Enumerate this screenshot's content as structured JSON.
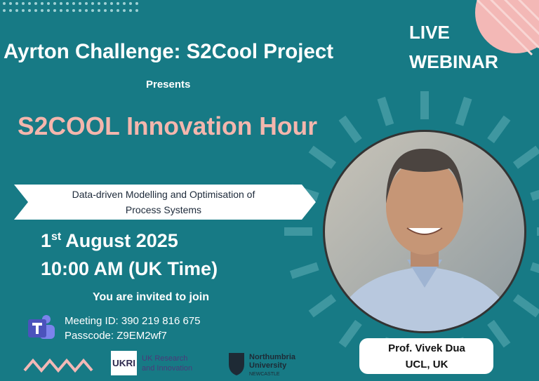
{
  "header": {
    "title": "Ayrton Challenge: S2Cool Project",
    "presents": "Presents",
    "event": "S2COOL Innovation Hour",
    "badge": [
      "LIVE",
      "WEBINAR"
    ]
  },
  "talk": {
    "title_lines": [
      "Data-driven Modelling and Optimisation of",
      "Process Systems"
    ]
  },
  "schedule": {
    "day": "1",
    "day_suffix": "st",
    "month_year": "August 2025",
    "time": "10:00 AM (UK Time)"
  },
  "invite": "You are invited to join",
  "meeting": {
    "id": "Meeting ID: 390 219 816 675",
    "passcode": "Passcode: Z9EM2wf7"
  },
  "speaker": {
    "name": "Prof. Vivek Dua",
    "affiliation": "UCL, UK"
  },
  "logos": {
    "ukri_mark": "UKRI",
    "ukri": [
      "UK Research",
      "and Innovation"
    ],
    "northumbria": [
      "Northumbria",
      "University",
      "NEWCASTLE"
    ]
  }
}
